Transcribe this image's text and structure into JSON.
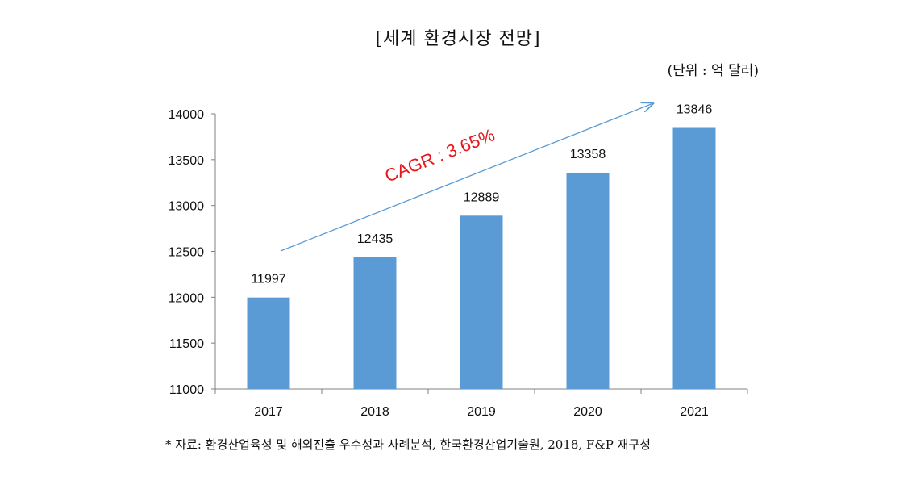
{
  "title": "[세계 환경시장 전망]",
  "unit_note": "(단위 : 억 달러)",
  "footnote": "* 자료: 환경산업육성 및 해외진출 우수성과 사례분석, 한국환경산업기술원, 2018, F&P 재구성",
  "colors": {
    "bar": "#5b9bd5",
    "arrow": "#5b9bd5",
    "cagr": "#e8161b",
    "axis": "#808080"
  },
  "chart_data": {
    "type": "bar",
    "categories": [
      "2017",
      "2018",
      "2019",
      "2020",
      "2021"
    ],
    "values": [
      11997,
      12435,
      12889,
      13358,
      13846
    ],
    "data_labels": [
      "11997",
      "12435",
      "12889",
      "13358",
      "13846"
    ],
    "ylim": [
      11000,
      14000
    ],
    "yticks": [
      11000,
      11500,
      12000,
      12500,
      13000,
      13500,
      14000
    ],
    "ytick_labels": [
      "11000",
      "11500",
      "12000",
      "12500",
      "13000",
      "13500",
      "14000"
    ],
    "grid": false,
    "legend": "none",
    "annotation": "CAGR : 3.65%"
  }
}
